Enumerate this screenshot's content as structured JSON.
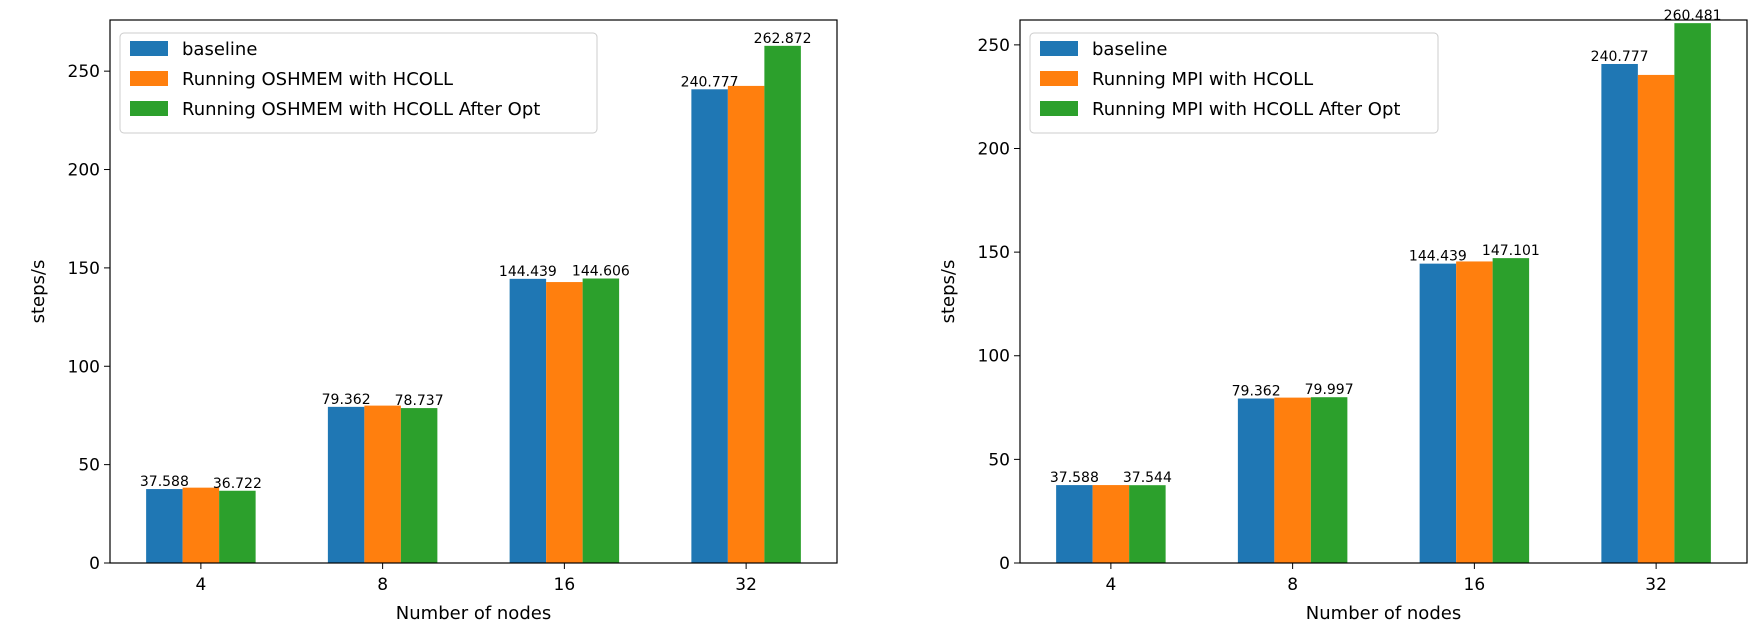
{
  "colors": {
    "baseline": "#1f77b4",
    "hcoll": "#ff7f0e",
    "after_opt": "#2ca02c",
    "axes": "#000000",
    "legend_border": "#cccccc"
  },
  "chart_data": [
    {
      "type": "bar",
      "title": "",
      "xlabel": "Number of nodes",
      "ylabel": "steps/s",
      "categories": [
        "4",
        "8",
        "16",
        "32"
      ],
      "ylim": [
        0,
        276
      ],
      "yticks": [
        0,
        50,
        100,
        150,
        200,
        250
      ],
      "grid": false,
      "legend_position": "upper-left",
      "series": [
        {
          "name": "baseline",
          "values": [
            37.588,
            79.362,
            144.439,
            240.777
          ],
          "color": "#1f77b4",
          "labels": [
            "37.588",
            "79.362",
            "144.439",
            "240.777"
          ]
        },
        {
          "name": "Running OSHMEM with HCOLL",
          "values": [
            38.3,
            80.0,
            142.8,
            242.5
          ],
          "color": "#ff7f0e",
          "labels": [
            "",
            "",
            "",
            ""
          ]
        },
        {
          "name": "Running OSHMEM with HCOLL After Opt",
          "values": [
            36.722,
            78.737,
            144.606,
            262.872
          ],
          "color": "#2ca02c",
          "labels": [
            "36.722",
            "78.737",
            "144.606",
            "262.872"
          ]
        }
      ]
    },
    {
      "type": "bar",
      "title": "",
      "xlabel": "Number of nodes",
      "ylabel": "steps/s",
      "categories": [
        "4",
        "8",
        "16",
        "32"
      ],
      "ylim": [
        0,
        262
      ],
      "yticks": [
        0,
        50,
        100,
        150,
        200,
        250
      ],
      "grid": false,
      "legend_position": "upper-left",
      "series": [
        {
          "name": "baseline",
          "values": [
            37.588,
            79.362,
            144.439,
            240.777
          ],
          "color": "#1f77b4",
          "labels": [
            "37.588",
            "79.362",
            "144.439",
            "240.777"
          ]
        },
        {
          "name": "Running MPI with HCOLL",
          "values": [
            37.6,
            79.8,
            145.5,
            235.5
          ],
          "color": "#ff7f0e",
          "labels": [
            "",
            "",
            "",
            ""
          ]
        },
        {
          "name": "Running MPI with HCOLL After Opt",
          "values": [
            37.544,
            79.997,
            147.101,
            260.481
          ],
          "color": "#2ca02c",
          "labels": [
            "37.544",
            "79.997",
            "147.101",
            "260.481"
          ]
        }
      ]
    }
  ]
}
